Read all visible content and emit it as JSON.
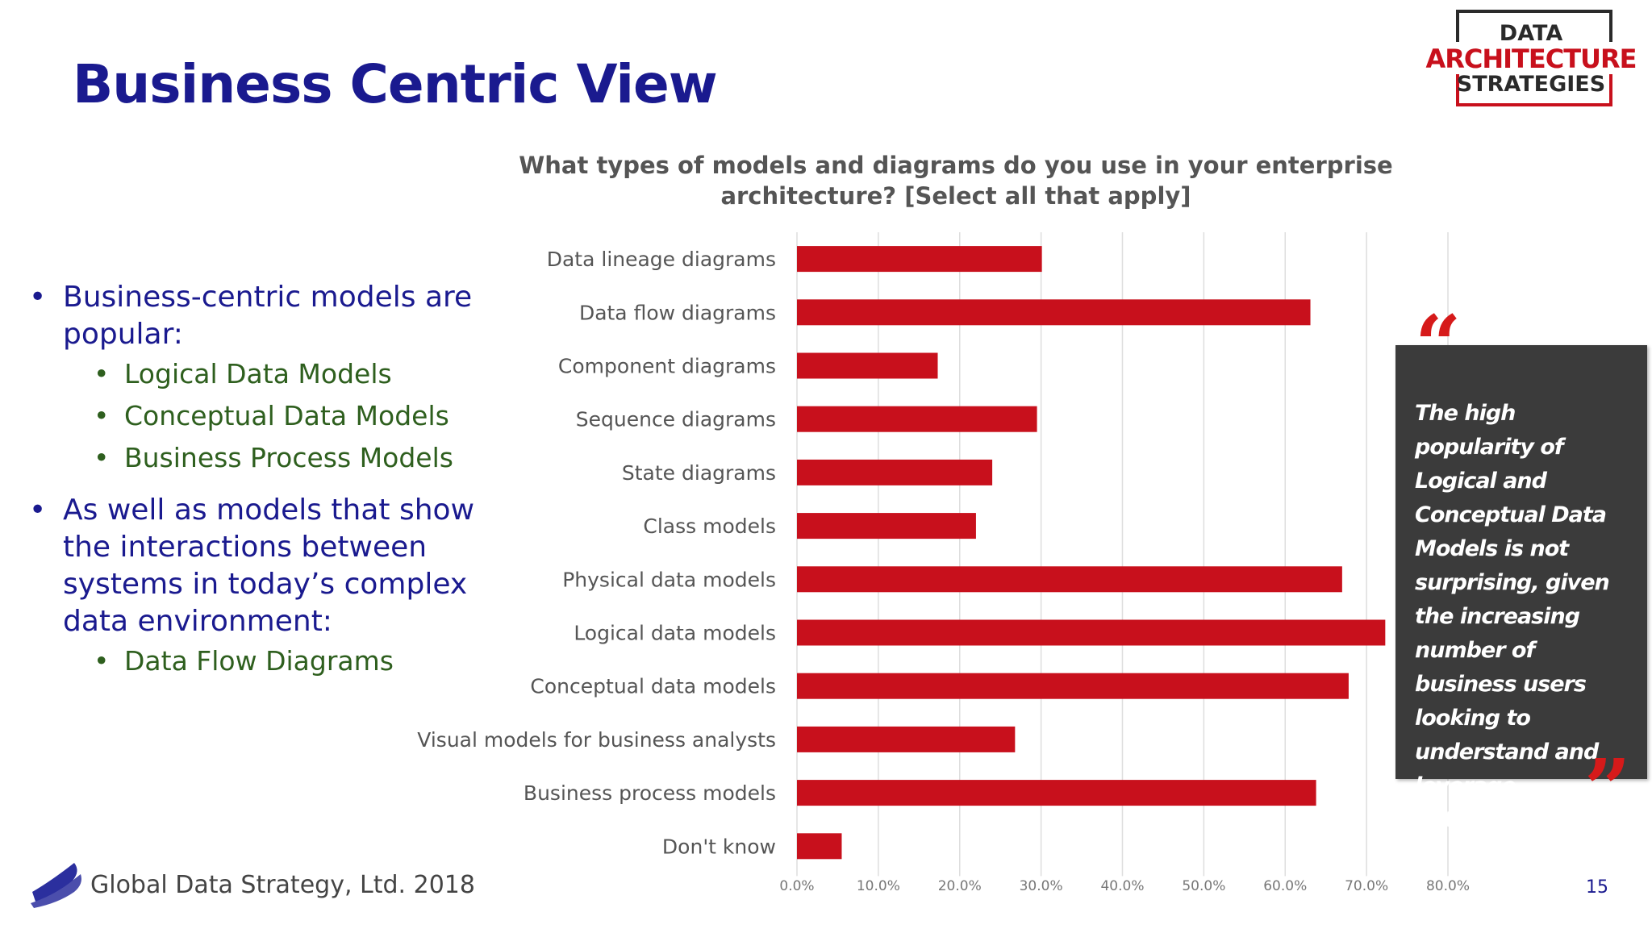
{
  "slide": {
    "title": "Business Centric View",
    "bullets": [
      {
        "text": "Business-centric models are popular:",
        "sub": [
          "Logical Data Models",
          "Conceptual Data Models",
          "Business Process Models"
        ]
      },
      {
        "text": "As well as models that show the interactions between systems in today’s complex data environment:",
        "sub": [
          "Data Flow Diagrams"
        ]
      }
    ],
    "quote": "The high popularity of Logical and Conceptual Data Models is not surprising, given the increasing number of business users looking to understand and leverage enterprise data.",
    "quote_open": "“",
    "quote_close": "”",
    "footer": "Global Data Strategy, Ltd. 2018",
    "page_number": "15"
  },
  "logo": {
    "line1": "DATA",
    "line2": "ARCHITECTURE",
    "line3": "STRATEGIES"
  },
  "colors": {
    "title": "#1a1a8f",
    "sub_bullet": "#2e5f1e",
    "bar": "#c8101c",
    "logo_red": "#c8101c",
    "quote_box": "#3b3b3b"
  },
  "chart_data": {
    "type": "bar",
    "orientation": "horizontal",
    "title": "What types of models and diagrams do you use in your enterprise architecture? [Select all that apply]",
    "categories": [
      "Data lineage diagrams",
      "Data flow diagrams",
      "Component diagrams",
      "Sequence diagrams",
      "State diagrams",
      "Class models",
      "Physical data models",
      "Logical data models",
      "Conceptual data models",
      "Visual models for business analysts",
      "Business process models",
      "Don't know"
    ],
    "values": [
      30.1,
      63.1,
      17.3,
      29.5,
      24.0,
      22.0,
      67.0,
      72.3,
      67.8,
      26.8,
      63.8,
      5.5
    ],
    "unit": "%",
    "xlim": [
      0,
      80
    ],
    "xticks": [
      "0.0%",
      "10.0%",
      "20.0%",
      "30.0%",
      "40.0%",
      "50.0%",
      "60.0%",
      "70.0%",
      "80.0%"
    ],
    "grid": true,
    "legend": "none"
  }
}
